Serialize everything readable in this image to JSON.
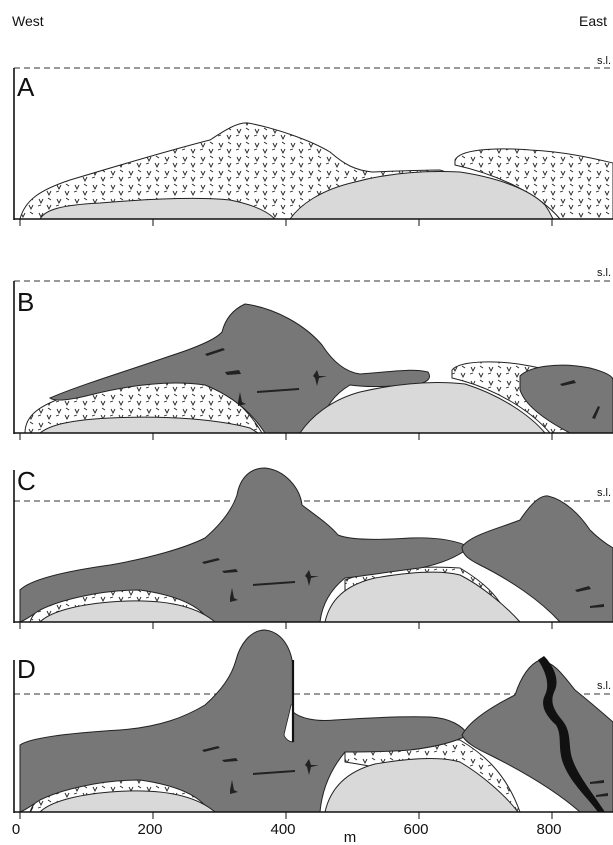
{
  "header": {
    "west": "West",
    "east": "East"
  },
  "sea_level_label": "s.l.",
  "panels": [
    {
      "letter": "A"
    },
    {
      "letter": "B"
    },
    {
      "letter": "C"
    },
    {
      "letter": "D"
    }
  ],
  "axis": {
    "unit": "m",
    "ticks": [
      "0",
      "200",
      "400",
      "600",
      "800"
    ]
  },
  "colors": {
    "dark_unit": "#777777",
    "light_unit": "#d9d9d9",
    "pattern_unit": "#ffffff",
    "outline": "#222222"
  }
}
